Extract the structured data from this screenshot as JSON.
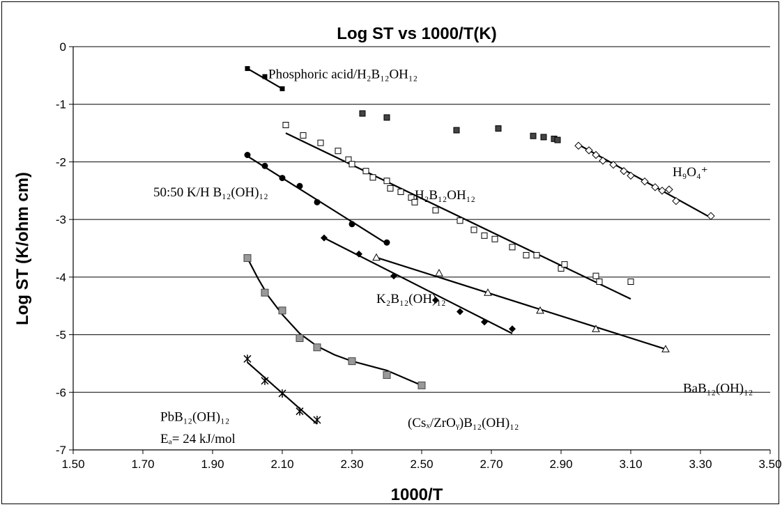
{
  "chart_data": {
    "type": "scatter",
    "title": "Log ST vs 1000/T(K)",
    "xlabel": "1000/T",
    "ylabel": "Log ST (K/ohm cm)",
    "xlim": [
      1.5,
      3.5
    ],
    "ylim": [
      -7,
      0
    ],
    "xticks": [
      "1.50",
      "1.70",
      "1.90",
      "2.10",
      "2.30",
      "2.50",
      "2.70",
      "2.90",
      "3.10",
      "3.30",
      "3.50"
    ],
    "yticks": [
      "0",
      "-1",
      "-2",
      "-3",
      "-4",
      "-5",
      "-6",
      "-7"
    ],
    "grid": "horizontal",
    "legend": "none",
    "series": [
      {
        "name": "Phosphoric acid/H₂B₁₂OH₁₂",
        "marker": "square-filled",
        "points": [
          [
            2.0,
            -0.38
          ],
          [
            2.05,
            -0.52
          ],
          [
            2.1,
            -0.73
          ]
        ],
        "fit": [
          [
            2.0,
            -0.38
          ],
          [
            2.1,
            -0.73
          ]
        ]
      },
      {
        "name": "",
        "marker": "square-dark",
        "points": [
          [
            2.33,
            -1.16
          ],
          [
            2.4,
            -1.23
          ],
          [
            2.6,
            -1.45
          ],
          [
            2.72,
            -1.42
          ],
          [
            2.82,
            -1.55
          ],
          [
            2.85,
            -1.57
          ],
          [
            2.88,
            -1.6
          ],
          [
            2.89,
            -1.62
          ]
        ],
        "fit": null
      },
      {
        "name": "H₂B₁₂OH₁₂",
        "marker": "square-open",
        "points": [
          [
            2.11,
            -1.36
          ],
          [
            2.16,
            -1.54
          ],
          [
            2.21,
            -1.67
          ],
          [
            2.26,
            -1.81
          ],
          [
            2.29,
            -1.96
          ],
          [
            2.3,
            -2.04
          ],
          [
            2.34,
            -2.16
          ],
          [
            2.36,
            -2.27
          ],
          [
            2.4,
            -2.33
          ],
          [
            2.41,
            -2.46
          ],
          [
            2.44,
            -2.52
          ],
          [
            2.47,
            -2.62
          ],
          [
            2.48,
            -2.7
          ],
          [
            2.54,
            -2.84
          ],
          [
            2.61,
            -3.02
          ],
          [
            2.65,
            -3.18
          ],
          [
            2.68,
            -3.28
          ],
          [
            2.71,
            -3.34
          ],
          [
            2.76,
            -3.48
          ],
          [
            2.8,
            -3.62
          ],
          [
            2.83,
            -3.62
          ],
          [
            2.9,
            -3.85
          ],
          [
            2.91,
            -3.78
          ],
          [
            3.0,
            -3.98
          ],
          [
            3.01,
            -4.08
          ],
          [
            3.1,
            -4.08
          ]
        ],
        "fit": [
          [
            2.11,
            -1.5
          ],
          [
            3.1,
            -4.38
          ]
        ]
      },
      {
        "name": "H₉O₄⁺",
        "marker": "diamond-open",
        "points": [
          [
            2.95,
            -1.72
          ],
          [
            2.98,
            -1.8
          ],
          [
            3.0,
            -1.88
          ],
          [
            3.02,
            -1.98
          ],
          [
            3.05,
            -2.05
          ],
          [
            3.08,
            -2.16
          ],
          [
            3.1,
            -2.24
          ],
          [
            3.14,
            -2.34
          ],
          [
            3.17,
            -2.44
          ],
          [
            3.19,
            -2.5
          ],
          [
            3.21,
            -2.48
          ],
          [
            3.23,
            -2.68
          ],
          [
            3.33,
            -2.94
          ]
        ],
        "fit": [
          [
            2.95,
            -1.7
          ],
          [
            3.33,
            -2.97
          ]
        ]
      },
      {
        "name": "50:50 K/H B₁₂(OH)₁₂",
        "marker": "circle-filled",
        "points": [
          [
            2.0,
            -1.88
          ],
          [
            2.05,
            -2.07
          ],
          [
            2.1,
            -2.28
          ],
          [
            2.15,
            -2.42
          ],
          [
            2.2,
            -2.7
          ],
          [
            2.3,
            -3.08
          ],
          [
            2.4,
            -3.4
          ]
        ],
        "fit": [
          [
            2.0,
            -1.9
          ],
          [
            2.4,
            -3.42
          ]
        ]
      },
      {
        "name": "K₂B₁₂(OH)₁₂",
        "marker": "diamond-filled",
        "points": [
          [
            2.22,
            -3.32
          ],
          [
            2.32,
            -3.6
          ],
          [
            2.42,
            -3.98
          ],
          [
            2.54,
            -4.4
          ],
          [
            2.61,
            -4.6
          ],
          [
            2.68,
            -4.78
          ],
          [
            2.76,
            -4.9
          ]
        ],
        "fit": [
          [
            2.22,
            -3.32
          ],
          [
            2.76,
            -4.98
          ]
        ]
      },
      {
        "name": "BaB₁₂(OH)₁₂",
        "marker": "triangle-open",
        "points": [
          [
            2.37,
            -3.66
          ],
          [
            2.55,
            -3.93
          ],
          [
            2.69,
            -4.27
          ],
          [
            2.84,
            -4.58
          ],
          [
            3.0,
            -4.9
          ],
          [
            3.2,
            -5.25
          ]
        ],
        "fit": [
          [
            2.37,
            -3.66
          ],
          [
            3.2,
            -5.25
          ]
        ]
      },
      {
        "name": "(Csₓ/ZrOᵧ)B₁₂(OH)₁₂",
        "marker": "square-gray",
        "points": [
          [
            2.0,
            -3.67
          ],
          [
            2.05,
            -4.27
          ],
          [
            2.1,
            -4.58
          ],
          [
            2.15,
            -5.06
          ],
          [
            2.2,
            -5.22
          ],
          [
            2.3,
            -5.46
          ],
          [
            2.4,
            -5.7
          ],
          [
            2.5,
            -5.88
          ]
        ],
        "fit": [
          [
            2.0,
            -3.67
          ],
          [
            2.03,
            -4.02
          ],
          [
            2.06,
            -4.33
          ],
          [
            2.1,
            -4.65
          ],
          [
            2.15,
            -4.98
          ],
          [
            2.2,
            -5.2
          ],
          [
            2.25,
            -5.35
          ],
          [
            2.3,
            -5.46
          ],
          [
            2.4,
            -5.62
          ],
          [
            2.5,
            -5.88
          ]
        ]
      },
      {
        "name": "PbB₁₂(OH)₁₂",
        "marker": "asterisk",
        "points": [
          [
            2.0,
            -5.42
          ],
          [
            2.05,
            -5.8
          ],
          [
            2.1,
            -6.02
          ],
          [
            2.15,
            -6.33
          ],
          [
            2.2,
            -6.48
          ]
        ],
        "fit": [
          [
            2.0,
            -5.48
          ],
          [
            2.2,
            -6.55
          ]
        ]
      }
    ],
    "labels": [
      {
        "text": "Phosphoric acid/H₂B₁₂OH₁₂",
        "x": 2.06,
        "y": -0.55
      },
      {
        "text": "H₉O₄⁺",
        "x": 3.22,
        "y": -2.25
      },
      {
        "text": "50:50 K/H B₁₂(OH)₁₂",
        "x": 1.73,
        "y": -2.6
      },
      {
        "text": "H₂B₁₂OH₁₂",
        "x": 2.48,
        "y": -2.65
      },
      {
        "text": "K₂B₁₂(OH)₁₂",
        "x": 2.37,
        "y": -4.45
      },
      {
        "text": "BaB₁₂(OH)₁₂",
        "x": 3.25,
        "y": -6.0
      },
      {
        "text": "PbB₁₂(OH)₁₂",
        "x": 1.75,
        "y": -6.5
      },
      {
        "text": "Eₐ= 24 kJ/mol",
        "x": 1.75,
        "y": -6.88
      },
      {
        "text": "(Csₓ/ZrOᵧ)B₁₂(OH)₁₂",
        "x": 2.46,
        "y": -6.6
      }
    ]
  }
}
